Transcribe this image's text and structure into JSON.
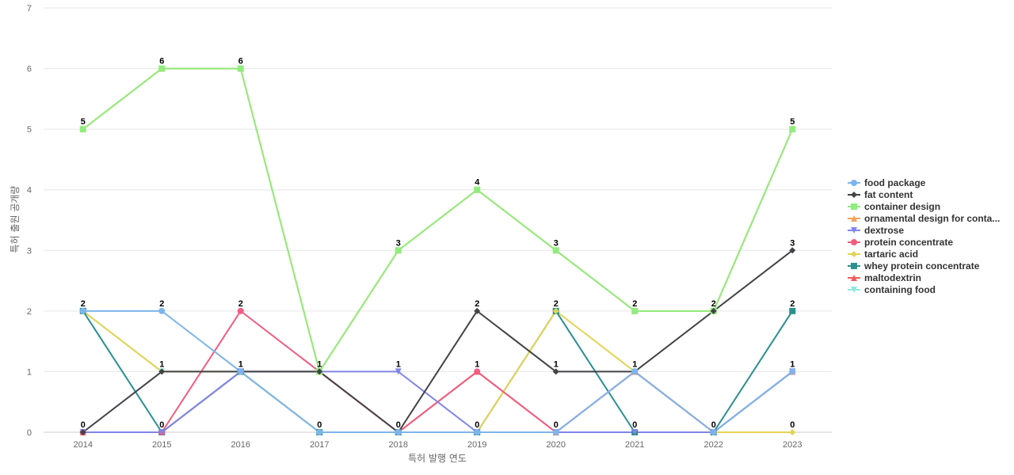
{
  "chart_data": {
    "type": "line",
    "title": "",
    "xlabel": "특허 발행 연도",
    "ylabel": "특허 출원 공개량",
    "ylim": [
      0,
      7
    ],
    "y_ticks": [
      "0",
      "1",
      "2",
      "3",
      "4",
      "5",
      "6",
      "7"
    ],
    "categories": [
      "2014",
      "2015",
      "2016",
      "2017",
      "2018",
      "2019",
      "2020",
      "2021",
      "2022",
      "2023"
    ],
    "grid": "horizontal",
    "legend_position": "right",
    "series": [
      {
        "name": "food package",
        "color": "#7cb5ec",
        "marker": "circle",
        "values": [
          2,
          2,
          1,
          0,
          0,
          0,
          0,
          1,
          0,
          1
        ]
      },
      {
        "name": "fat content",
        "color": "#434348",
        "marker": "diamond",
        "values": [
          0,
          1,
          1,
          1,
          0,
          2,
          1,
          1,
          2,
          3
        ]
      },
      {
        "name": "container design",
        "color": "#90ed7d",
        "marker": "square",
        "values": [
          5,
          6,
          6,
          1,
          3,
          4,
          3,
          2,
          2,
          5
        ]
      },
      {
        "name": "ornamental design for conta...",
        "color": "#f7a35c",
        "marker": "triangle",
        "values": [
          5,
          6,
          6,
          1,
          3,
          4,
          3,
          2,
          2,
          5
        ]
      },
      {
        "name": "dextrose",
        "color": "#8085e9",
        "marker": "triangle-down",
        "values": [
          0,
          0,
          1,
          1,
          1,
          0,
          0,
          0,
          0,
          1
        ]
      },
      {
        "name": "protein concentrate",
        "color": "#f15c80",
        "marker": "circle",
        "values": [
          0,
          0,
          2,
          1,
          0,
          1,
          0,
          1,
          0,
          1
        ]
      },
      {
        "name": "tartaric acid",
        "color": "#e4d354",
        "marker": "diamond",
        "values": [
          2,
          1,
          1,
          0,
          0,
          0,
          2,
          1,
          0,
          0
        ]
      },
      {
        "name": "whey protein concentrate",
        "color": "#2b908f",
        "marker": "square",
        "values": [
          2,
          0,
          1,
          0,
          0,
          0,
          2,
          0,
          0,
          2
        ]
      },
      {
        "name": "maltodextrin",
        "color": "#f45b5b",
        "marker": "triangle",
        "values": [
          0,
          0,
          1,
          1,
          0,
          1,
          0,
          1,
          0,
          1
        ]
      },
      {
        "name": "containing food",
        "color": "#91e8e1",
        "marker": "triangle-down",
        "values": [
          2,
          1,
          1,
          0,
          0,
          0,
          0,
          1,
          0,
          1
        ]
      }
    ],
    "data_labels": [
      "5",
      "6",
      "6",
      "1",
      "3",
      "4",
      "3",
      "2",
      "2",
      "5",
      "2",
      "2",
      "2",
      "1",
      "1",
      "2",
      "2",
      "2",
      "2",
      "3",
      "0",
      "1",
      "1",
      "0",
      "0",
      "1",
      "1",
      "1",
      "0",
      "2",
      "0",
      "0",
      "0",
      "1",
      "0",
      "0",
      "0",
      "0",
      "0",
      "1",
      "0"
    ]
  }
}
